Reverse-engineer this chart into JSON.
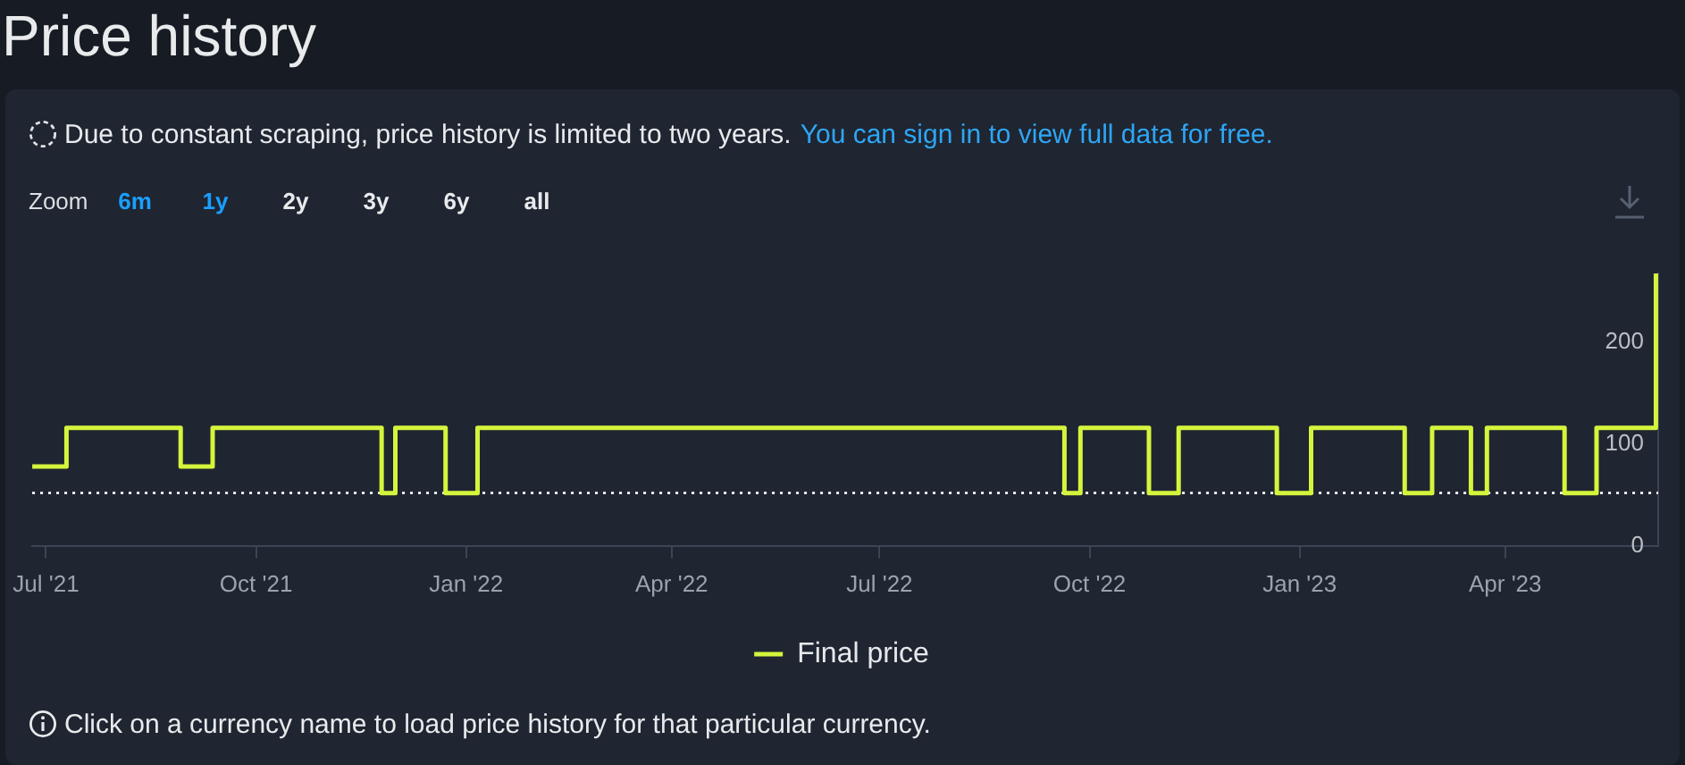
{
  "chart_data": {
    "type": "step",
    "title": "Price history",
    "subtitle": "Due to constant scraping, price history is limited to two years.",
    "annotations": [
      "You can sign in to view full data for free.",
      "Zoom",
      "6m",
      "1y",
      "2y",
      "3y",
      "6y",
      "all",
      "Click on a currency name to load price history for that particular currency."
    ],
    "x": [
      "2021-06-25",
      "2021-07-10",
      "2021-08-29",
      "2021-09-12",
      "2021-11-25",
      "2021-12-01",
      "2021-12-23",
      "2022-01-06",
      "2022-09-20",
      "2022-09-27",
      "2022-10-27",
      "2022-11-09",
      "2022-12-22",
      "2023-01-06",
      "2023-02-16",
      "2023-02-28",
      "2023-03-17",
      "2023-03-24",
      "2023-04-27",
      "2023-05-11",
      "2023-06-06"
    ],
    "series": [
      {
        "name": "Final price",
        "color": "#d4f53c",
        "values": [
          78,
          116,
          78,
          116,
          52,
          116,
          52,
          116,
          52,
          116,
          52,
          116,
          52,
          116,
          52,
          116,
          52,
          116,
          52,
          116,
          268
        ]
      }
    ],
    "xlim": [
      "2021-06-25",
      "2023-06-07"
    ],
    "xticks": [
      {
        "value": "2021-07",
        "label": "Jul '21"
      },
      {
        "value": "2021-10",
        "label": "Oct '21"
      },
      {
        "value": "2022-01",
        "label": "Jan '22"
      },
      {
        "value": "2022-04",
        "label": "Apr '22"
      },
      {
        "value": "2022-07",
        "label": "Jul '22"
      },
      {
        "value": "2022-10",
        "label": "Oct '22"
      },
      {
        "value": "2023-01",
        "label": "Jan '23"
      },
      {
        "value": "2023-04",
        "label": "Apr '23"
      }
    ],
    "ylim": [
      0,
      268
    ],
    "yticks": [
      0,
      100,
      200
    ],
    "ref_lines": [
      {
        "axis": "y",
        "value": 52,
        "color": "#ffffff",
        "line_style": "dotted"
      }
    ],
    "legend": "bottom"
  }
}
